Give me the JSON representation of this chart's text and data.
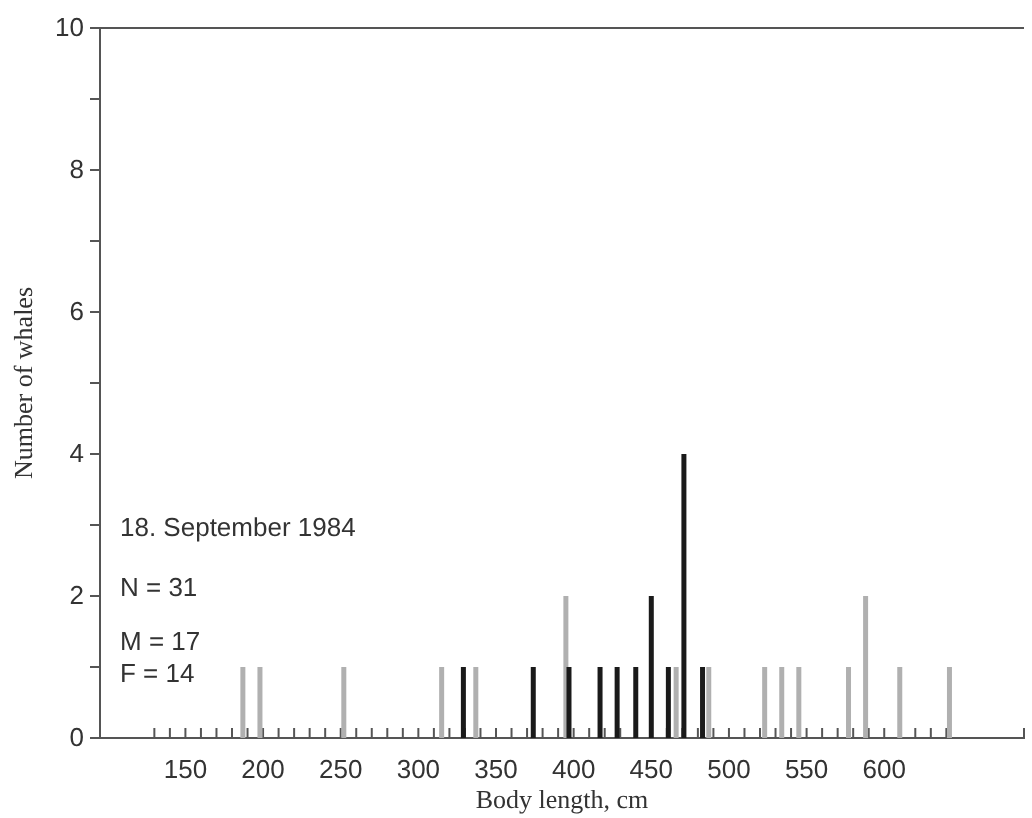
{
  "chart_data": {
    "type": "bar",
    "xlabel": "Body length,  cm",
    "ylabel": "Number of whales",
    "annotations": [
      "18. September 1984",
      "N = 31",
      "M = 17",
      "F = 14"
    ],
    "series": [
      {
        "color": "#b0b0b0",
        "x": [
          187,
          198,
          252,
          315,
          337,
          395,
          466,
          487,
          523,
          534,
          545,
          577,
          588,
          610,
          642
        ],
        "values": [
          1,
          1,
          1,
          1,
          1,
          2,
          1,
          1,
          1,
          1,
          1,
          1,
          2,
          1,
          1
        ]
      },
      {
        "color": "#1a1a1a",
        "x": [
          329,
          374,
          397,
          417,
          428,
          440,
          450,
          461,
          471,
          483
        ],
        "values": [
          1,
          1,
          1,
          1,
          1,
          1,
          2,
          1,
          4,
          1
        ]
      }
    ],
    "xlim": [
      95,
      690
    ],
    "xticks": [
      {
        "value": 130,
        "label": null
      },
      {
        "value": 140,
        "label": null
      },
      150,
      {
        "value": 160,
        "label": null
      },
      {
        "value": 170,
        "label": null
      },
      {
        "value": 180,
        "label": null
      },
      {
        "value": 190,
        "label": null
      },
      200,
      {
        "value": 210,
        "label": null
      },
      {
        "value": 220,
        "label": null
      },
      {
        "value": 230,
        "label": null
      },
      {
        "value": 240,
        "label": null
      },
      250,
      {
        "value": 260,
        "label": null
      },
      {
        "value": 270,
        "label": null
      },
      {
        "value": 280,
        "label": null
      },
      {
        "value": 290,
        "label": null
      },
      300,
      {
        "value": 310,
        "label": null
      },
      {
        "value": 320,
        "label": null
      },
      {
        "value": 330,
        "label": null
      },
      {
        "value": 340,
        "label": null
      },
      350,
      {
        "value": 360,
        "label": null
      },
      {
        "value": 370,
        "label": null
      },
      {
        "value": 380,
        "label": null
      },
      {
        "value": 390,
        "label": null
      },
      400,
      {
        "value": 410,
        "label": null
      },
      {
        "value": 420,
        "label": null
      },
      {
        "value": 430,
        "label": null
      },
      {
        "value": 440,
        "label": null
      },
      450,
      {
        "value": 460,
        "label": null
      },
      {
        "value": 470,
        "label": null
      },
      {
        "value": 480,
        "label": null
      },
      {
        "value": 490,
        "label": null
      },
      500,
      {
        "value": 510,
        "label": null
      },
      {
        "value": 520,
        "label": null
      },
      {
        "value": 530,
        "label": null
      },
      {
        "value": 540,
        "label": null
      },
      550,
      {
        "value": 560,
        "label": null
      },
      {
        "value": 570,
        "label": null
      },
      {
        "value": 580,
        "label": null
      },
      {
        "value": 590,
        "label": null
      },
      600,
      {
        "value": 610,
        "label": null
      },
      {
        "value": 620,
        "label": null
      },
      {
        "value": 630,
        "label": null
      },
      {
        "value": 640,
        "label": null
      }
    ],
    "ylim": [
      0,
      10
    ],
    "yticks": [
      0,
      {
        "value": 1,
        "label": null
      },
      2,
      {
        "value": 3,
        "label": null
      },
      4,
      {
        "value": 5,
        "label": null
      },
      6,
      {
        "value": 7,
        "label": null
      },
      8,
      {
        "value": 9,
        "label": null
      },
      10
    ]
  }
}
